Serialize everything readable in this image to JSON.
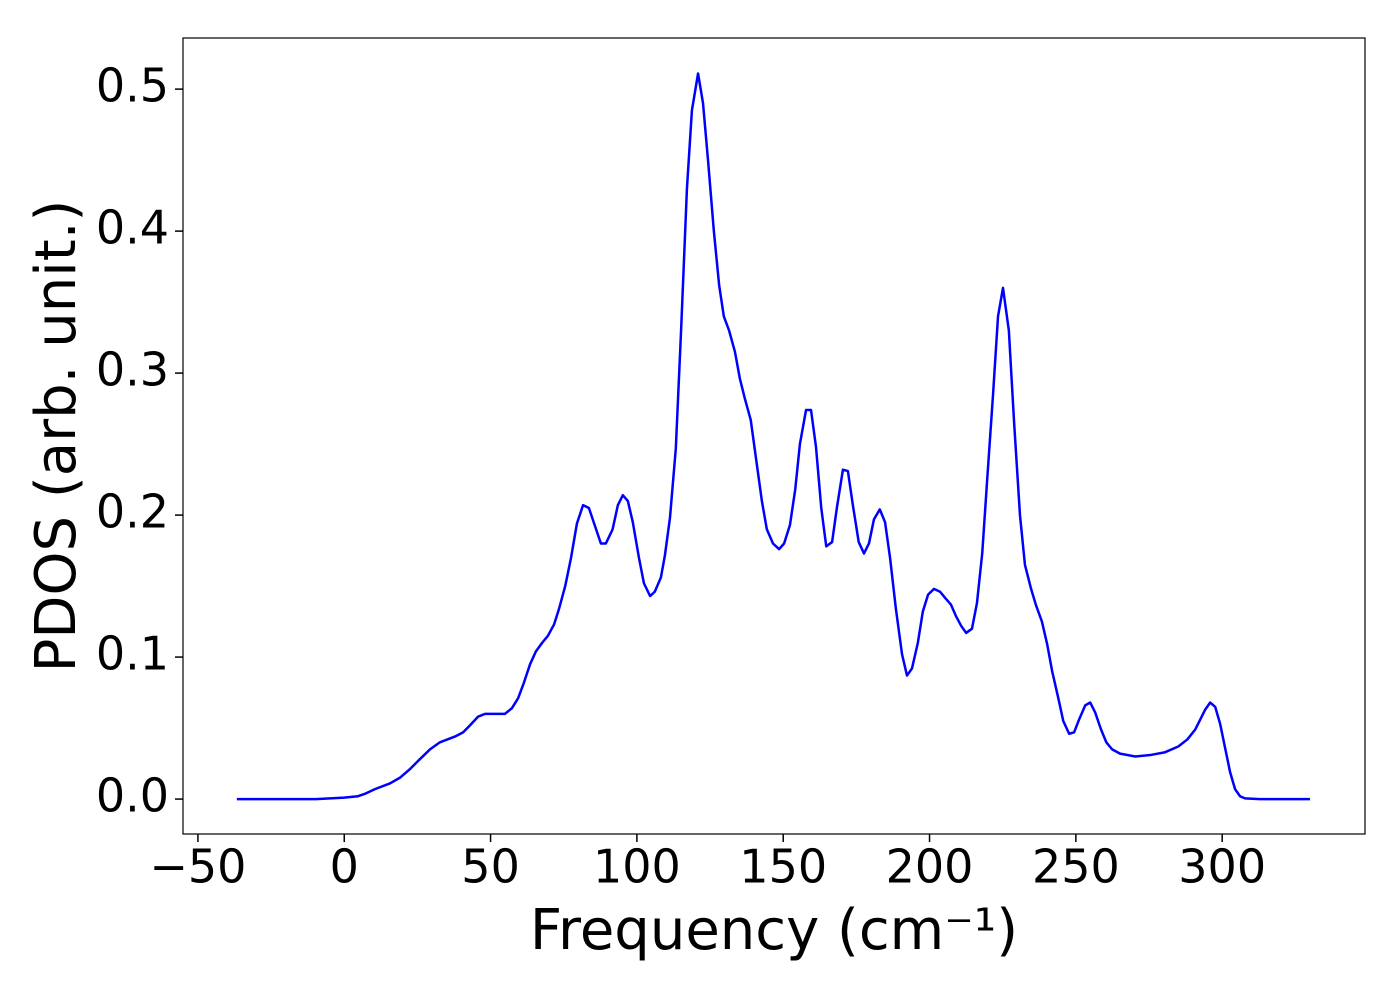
{
  "chart_data": {
    "type": "line",
    "xlabel": "Frequency (cm⁻¹)",
    "ylabel": "PDOS (arb. unit.)",
    "color": "#0000ff",
    "x": [
      -36.7,
      -9.7,
      0,
      4.7,
      7.4,
      10.5,
      15.6,
      19,
      22.4,
      25.8,
      29.3,
      32.7,
      37.8,
      40.6,
      43,
      45.7,
      48.1,
      53.2,
      54.9,
      57.3,
      59.4,
      61.4,
      63.5,
      65.5,
      67.6,
      69.6,
      71.7,
      73.4,
      75.5,
      77.5,
      79.5,
      81.6,
      83.6,
      87.7,
      89.4,
      91.7,
      93.5,
      95.2,
      96.9,
      98.6,
      100.7,
      102.4,
      104.5,
      106.1,
      108.2,
      109.6,
      111.3,
      113.3,
      115.1,
      117.1,
      118.8,
      120.9,
      122.6,
      124.3,
      126.3,
      128.1,
      129.7,
      131.5,
      133.5,
      135.2,
      136.9,
      138.9,
      140.7,
      142.7,
      144.4,
      146.5,
      148.6,
      150.3,
      152.3,
      154.1,
      155.7,
      157.8,
      159.5,
      161.2,
      163,
      164.7,
      166.7,
      168.4,
      170.4,
      172.1,
      173.8,
      175.8,
      177.6,
      179.3,
      181,
      183,
      184.8,
      186.5,
      188.5,
      190.6,
      192.3,
      194,
      196,
      197.7,
      199.5,
      201.5,
      203.6,
      205.2,
      207.3,
      209,
      210.8,
      212.5,
      214.5,
      216.2,
      218,
      219.7,
      221.7,
      223.4,
      225.1,
      227.1,
      228.9,
      230.9,
      232.6,
      234.7,
      236.3,
      238.4,
      240.2,
      241.9,
      243.9,
      245.7,
      247.7,
      249.4,
      251.1,
      253.2,
      254.9,
      256.6,
      258.6,
      260.4,
      262.4,
      265.1,
      270.3,
      275.4,
      280.5,
      285,
      288.1,
      290.8,
      292.5,
      294.2,
      295.9,
      297.6,
      299.3,
      301,
      302.7,
      304.4,
      306.1,
      307.8,
      312.9,
      330
    ],
    "values": [
      0,
      0,
      0.001,
      0.002,
      0.004,
      0.007,
      0.011,
      0.015,
      0.021,
      0.028,
      0.035,
      0.04,
      0.044,
      0.047,
      0.052,
      0.058,
      0.06,
      0.06,
      0.06,
      0.064,
      0.071,
      0.082,
      0.095,
      0.104,
      0.11,
      0.115,
      0.123,
      0.134,
      0.15,
      0.17,
      0.194,
      0.207,
      0.205,
      0.18,
      0.18,
      0.19,
      0.207,
      0.214,
      0.21,
      0.195,
      0.17,
      0.152,
      0.143,
      0.146,
      0.156,
      0.172,
      0.198,
      0.247,
      0.33,
      0.43,
      0.485,
      0.511,
      0.49,
      0.45,
      0.4,
      0.362,
      0.34,
      0.33,
      0.315,
      0.296,
      0.282,
      0.267,
      0.24,
      0.21,
      0.19,
      0.18,
      0.176,
      0.18,
      0.193,
      0.218,
      0.25,
      0.274,
      0.274,
      0.248,
      0.205,
      0.178,
      0.181,
      0.206,
      0.232,
      0.231,
      0.207,
      0.181,
      0.173,
      0.18,
      0.197,
      0.204,
      0.195,
      0.17,
      0.134,
      0.102,
      0.087,
      0.092,
      0.11,
      0.132,
      0.144,
      0.148,
      0.146,
      0.142,
      0.137,
      0.129,
      0.122,
      0.117,
      0.12,
      0.138,
      0.173,
      0.225,
      0.285,
      0.34,
      0.36,
      0.33,
      0.265,
      0.2,
      0.165,
      0.148,
      0.137,
      0.125,
      0.109,
      0.09,
      0.072,
      0.055,
      0.046,
      0.047,
      0.056,
      0.066,
      0.068,
      0.061,
      0.049,
      0.04,
      0.035,
      0.032,
      0.03,
      0.031,
      0.033,
      0.037,
      0.042,
      0.049,
      0.056,
      0.063,
      0.068,
      0.065,
      0.053,
      0.036,
      0.019,
      0.007,
      0.002,
      0.0005,
      0,
      0
    ],
    "xlim": [
      -55.1,
      348.8
    ],
    "ylim": [
      -0.0246,
      0.536
    ],
    "xticks": [
      {
        "value": -50,
        "label": "−50"
      },
      0,
      50,
      100,
      150,
      200,
      250,
      300
    ],
    "yticks": [
      {
        "value": 0,
        "label": "0.0"
      },
      0.1,
      0.2,
      0.3,
      0.4,
      0.5
    ],
    "grid": false
  }
}
